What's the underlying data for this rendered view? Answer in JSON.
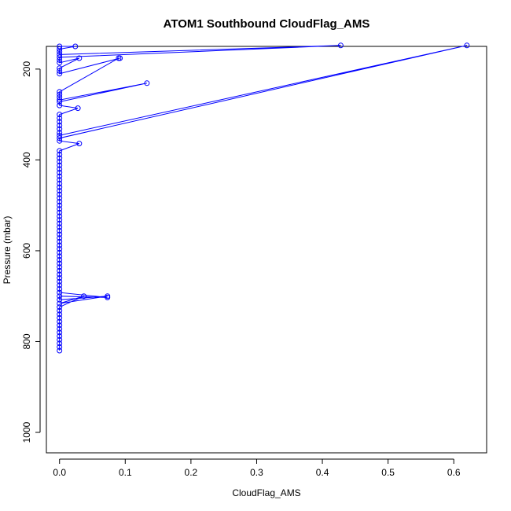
{
  "chart_data": {
    "type": "scatter",
    "title": "ATOM1 Southbound CloudFlag_AMS",
    "xlabel": "CloudFlag_AMS",
    "ylabel": "Pressure (mbar)",
    "xlim": [
      -0.02,
      0.65
    ],
    "ylim": [
      1045,
      150
    ],
    "y_reversed": true,
    "x_ticks": [
      "0.0",
      "0.1",
      "0.2",
      "0.3",
      "0.4",
      "0.5",
      "0.6"
    ],
    "y_ticks": [
      "200",
      "400",
      "600",
      "800",
      "1000"
    ],
    "x_tick_values": [
      0,
      0.1,
      0.2,
      0.3,
      0.4,
      0.5,
      0.6
    ],
    "y_tick_values": [
      200,
      400,
      600,
      800,
      1000
    ],
    "grid": false,
    "legend": "none",
    "series": [
      {
        "color": "#0000ff",
        "points": [
          [
            0,
            820
          ],
          [
            0,
            812
          ],
          [
            0,
            804
          ],
          [
            0,
            796
          ],
          [
            0,
            788
          ],
          [
            0,
            780
          ],
          [
            0,
            772
          ],
          [
            0,
            764
          ],
          [
            0,
            756
          ],
          [
            0,
            748
          ],
          [
            0,
            740
          ],
          [
            0,
            732
          ],
          [
            0,
            724
          ],
          [
            0.037,
            700
          ],
          [
            0,
            716
          ],
          [
            0.073,
            700
          ],
          [
            0,
            708
          ],
          [
            0,
            700
          ],
          [
            0.073,
            703
          ],
          [
            0,
            692
          ],
          [
            0,
            684
          ],
          [
            0,
            676
          ],
          [
            0,
            668
          ],
          [
            0,
            660
          ],
          [
            0,
            652
          ],
          [
            0,
            644
          ],
          [
            0,
            636
          ],
          [
            0,
            628
          ],
          [
            0,
            620
          ],
          [
            0,
            612
          ],
          [
            0,
            604
          ],
          [
            0,
            596
          ],
          [
            0,
            588
          ],
          [
            0,
            580
          ],
          [
            0,
            572
          ],
          [
            0,
            564
          ],
          [
            0,
            556
          ],
          [
            0,
            548
          ],
          [
            0,
            540
          ],
          [
            0,
            532
          ],
          [
            0,
            524
          ],
          [
            0,
            516
          ],
          [
            0,
            508
          ],
          [
            0,
            500
          ],
          [
            0,
            492
          ],
          [
            0,
            484
          ],
          [
            0,
            476
          ],
          [
            0,
            468
          ],
          [
            0,
            460
          ],
          [
            0,
            452
          ],
          [
            0,
            444
          ],
          [
            0,
            436
          ],
          [
            0,
            428
          ],
          [
            0,
            420
          ],
          [
            0,
            412
          ],
          [
            0,
            404
          ],
          [
            0,
            396
          ],
          [
            0,
            388
          ],
          [
            0,
            380
          ],
          [
            0.03,
            364
          ],
          [
            0,
            358
          ],
          [
            0,
            352
          ],
          [
            0.62,
            148
          ],
          [
            0,
            346
          ],
          [
            0,
            340
          ],
          [
            0,
            332
          ],
          [
            0,
            324
          ],
          [
            0,
            316
          ],
          [
            0,
            308
          ],
          [
            0,
            300
          ],
          [
            0.028,
            286
          ],
          [
            0,
            280
          ],
          [
            0,
            272
          ],
          [
            0.133,
            231
          ],
          [
            0,
            268
          ],
          [
            0,
            262
          ],
          [
            0,
            256
          ],
          [
            0,
            250
          ],
          [
            0.09,
            176
          ],
          [
            0.092,
            176
          ],
          [
            0,
            210
          ],
          [
            0,
            204
          ],
          [
            0,
            198
          ],
          [
            0.03,
            176
          ],
          [
            0,
            186
          ],
          [
            0,
            180
          ],
          [
            0,
            174
          ],
          [
            0.428,
            148
          ],
          [
            0,
            168
          ],
          [
            0,
            162
          ],
          [
            0,
            156
          ],
          [
            0.024,
            150
          ],
          [
            0,
            150
          ]
        ]
      }
    ]
  }
}
